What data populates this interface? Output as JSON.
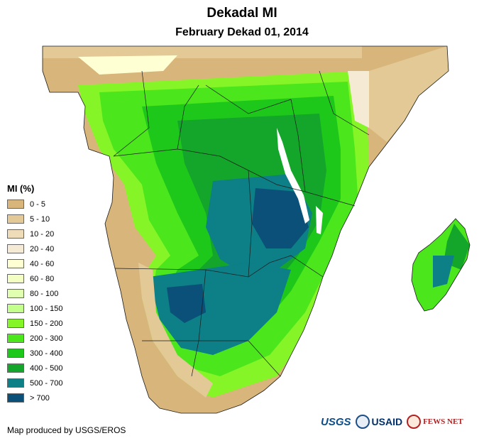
{
  "header": {
    "title": "Dekadal MI",
    "subtitle": "February Dekad 01, 2014"
  },
  "legend": {
    "title": "MI (%)",
    "items": [
      {
        "label": "0 - 5",
        "color": "#d8b57a"
      },
      {
        "label": "5 - 10",
        "color": "#e3c996"
      },
      {
        "label": "10 - 20",
        "color": "#eedcb8"
      },
      {
        "label": "20 - 40",
        "color": "#f5ebd5"
      },
      {
        "label": "40 - 60",
        "color": "#ffffd4"
      },
      {
        "label": "60 - 80",
        "color": "#f3ffc2"
      },
      {
        "label": "80 - 100",
        "color": "#e0ffb0"
      },
      {
        "label": "100 - 150",
        "color": "#c2ff8c"
      },
      {
        "label": "150 - 200",
        "color": "#86f527"
      },
      {
        "label": "200 - 300",
        "color": "#4be61c"
      },
      {
        "label": "300 - 400",
        "color": "#1ec81a"
      },
      {
        "label": "400 - 500",
        "color": "#13a62a"
      },
      {
        "label": "500 - 700",
        "color": "#0d7f86"
      },
      {
        "label": "> 700",
        "color": "#0a5078"
      }
    ]
  },
  "footer": {
    "credit": "Map produced by USGS/EROS",
    "logos": [
      "USGS",
      "USAID",
      "FEWS NET"
    ]
  },
  "map": {
    "ocean_color": "#ffffff",
    "border_color": "#1a1a1a"
  }
}
